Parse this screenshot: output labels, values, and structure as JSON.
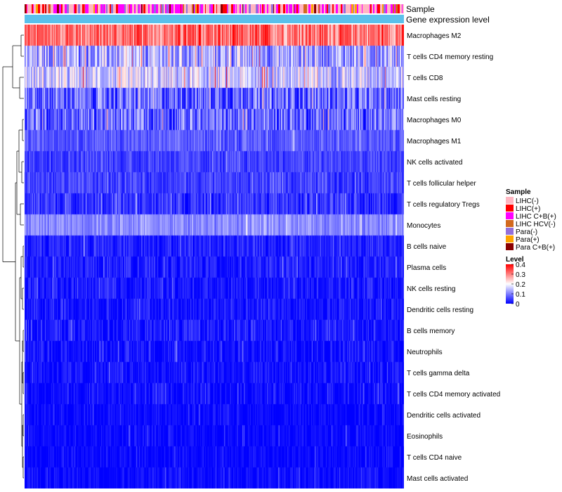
{
  "chart_data": {
    "type": "heatmap",
    "annotation_rows": [
      {
        "label": "Sample",
        "kind": "categorical"
      },
      {
        "label": "Gene expression level",
        "kind": "continuous",
        "color": "#5bc0eb"
      }
    ],
    "rows": [
      {
        "label": "Macrophages M2",
        "mean": 0.31,
        "spread": 0.09
      },
      {
        "label": "T cells CD4 memory resting",
        "mean": 0.13,
        "spread": 0.1
      },
      {
        "label": "T cells CD8",
        "mean": 0.16,
        "spread": 0.09
      },
      {
        "label": "Mast cells resting",
        "mean": 0.08,
        "spread": 0.09
      },
      {
        "label": "Macrophages M0",
        "mean": 0.08,
        "spread": 0.09
      },
      {
        "label": "Macrophages M1",
        "mean": 0.07,
        "spread": 0.04
      },
      {
        "label": "NK cells activated",
        "mean": 0.05,
        "spread": 0.04
      },
      {
        "label": "T cells follicular helper",
        "mean": 0.05,
        "spread": 0.04
      },
      {
        "label": "T cells regulatory  Tregs",
        "mean": 0.04,
        "spread": 0.05
      },
      {
        "label": "Monocytes",
        "mean": 0.11,
        "spread": 0.04
      },
      {
        "label": "B cells naive",
        "mean": 0.025,
        "spread": 0.04
      },
      {
        "label": "Plasma cells",
        "mean": 0.02,
        "spread": 0.04
      },
      {
        "label": "NK cells resting",
        "mean": 0.015,
        "spread": 0.04
      },
      {
        "label": "Dendritic cells resting",
        "mean": 0.015,
        "spread": 0.04
      },
      {
        "label": "B cells memory",
        "mean": 0.015,
        "spread": 0.05
      },
      {
        "label": "Neutrophils",
        "mean": 0.01,
        "spread": 0.04
      },
      {
        "label": "T cells gamma delta",
        "mean": 0.008,
        "spread": 0.04
      },
      {
        "label": "T cells CD4 memory activated",
        "mean": 0.006,
        "spread": 0.04
      },
      {
        "label": "Dendritic cells activated",
        "mean": 0.004,
        "spread": 0.03
      },
      {
        "label": "Eosinophils",
        "mean": 0.003,
        "spread": 0.03
      },
      {
        "label": "T cells CD4 naive",
        "mean": 0.002,
        "spread": 0.03
      },
      {
        "label": "Mast cells activated",
        "mean": 0.004,
        "spread": 0.03
      }
    ],
    "sample_count": 540,
    "dendrogram": "hierarchical clustering of rows (left side)",
    "legend": {
      "position": "right",
      "sample": {
        "title": "Sample",
        "entries": [
          {
            "label": "LIHC(-)",
            "color": "#ffb6c1"
          },
          {
            "label": "LIHC(+)",
            "color": "#ff0000"
          },
          {
            "label": "LIHC C+B(+)",
            "color": "#ff00ff"
          },
          {
            "label": "LIHC HCV(-)",
            "color": "#d2691e"
          },
          {
            "label": "Para(-)",
            "color": "#9370db"
          },
          {
            "label": "Para(+)",
            "color": "#ffa500"
          },
          {
            "label": "Para C+B(+)",
            "color": "#8b0000"
          }
        ]
      },
      "level": {
        "title": "Level",
        "ticks": [
          "0.4",
          "0.3",
          "0.2",
          "0.1",
          "0"
        ],
        "range": [
          0,
          0.4
        ],
        "colors": [
          "#0000ff",
          "#ffffff",
          "#ff0000"
        ]
      }
    }
  }
}
